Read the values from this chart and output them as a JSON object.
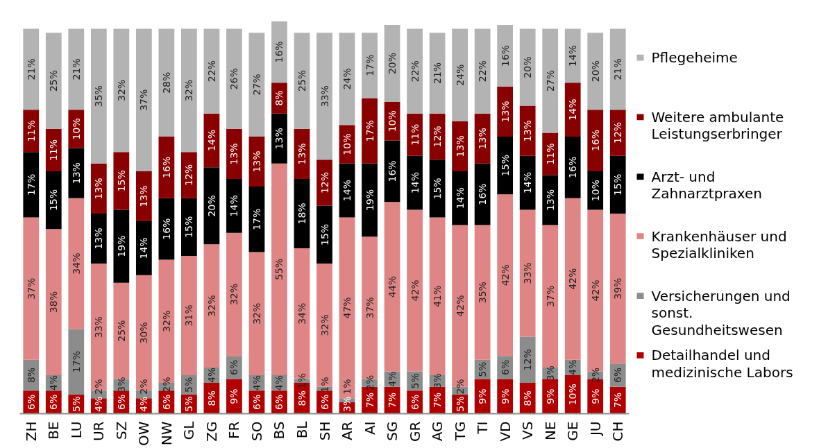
{
  "chart_data": {
    "type": "bar",
    "stacked": true,
    "tick_labels": "x",
    "grid": false,
    "legend": "right",
    "categories": [
      "ZH",
      "BE",
      "LU",
      "UR",
      "SZ",
      "OW",
      "NW",
      "GL",
      "ZG",
      "FR",
      "SO",
      "BS",
      "BL",
      "SH",
      "AR",
      "AI",
      "SG",
      "GR",
      "AG",
      "TG",
      "TI",
      "VD",
      "VS",
      "NE",
      "GE",
      "JU",
      "CH"
    ],
    "series": [
      {
        "name": "Detailhandel und medizinische Labors",
        "color": "#b00000",
        "values": [
          6,
          6,
          5,
          4,
          6,
          4,
          6,
          5,
          8,
          9,
          6,
          6,
          8,
          6,
          3,
          7,
          7,
          6,
          7,
          5,
          9,
          9,
          8,
          9,
          10,
          9,
          7
        ],
        "value_labels": [
          "6%",
          "6%",
          "5%",
          "4%",
          "6%",
          "4%",
          "6%",
          "5%",
          "8%",
          "9%",
          "6%",
          "6%",
          "8%",
          "6%",
          "3%",
          "7%",
          "7%",
          "6%",
          "7%",
          "5%",
          "9%",
          "9%",
          "8%",
          "9%",
          "10%",
          "9%",
          "7%"
        ]
      },
      {
        "name": "Versicherungen und sonst. Gesundheitswesen",
        "color": "#8c8c8c",
        "values": [
          8,
          4,
          17,
          2,
          3,
          2,
          2,
          5,
          4,
          6,
          4,
          4,
          1,
          1,
          1,
          2,
          4,
          5,
          3,
          2,
          5,
          6,
          12,
          3,
          4,
          2,
          6
        ],
        "value_labels": [
          "8%",
          "4%",
          "17%",
          "2%",
          "3%",
          "2%",
          "2%",
          "5%",
          "4%",
          "6%",
          "4%",
          "4%",
          "1%",
          "1%",
          "1%",
          "2%",
          "4%",
          "5%",
          "3%",
          "2%",
          "5%",
          "6%",
          "12%",
          "3%",
          "4%",
          "2%",
          "6%"
        ]
      },
      {
        "name": "Krankenhäuser und Spezialkliniken",
        "color": "#e08585",
        "values": [
          37,
          38,
          34,
          33,
          25,
          30,
          32,
          31,
          32,
          32,
          32,
          55,
          34,
          32,
          47,
          37,
          44,
          42,
          41,
          42,
          35,
          42,
          33,
          37,
          42,
          42,
          39
        ],
        "value_labels": [
          "37%",
          "38%",
          "34%",
          "33%",
          "25%",
          "30%",
          "32%",
          "31%",
          "32%",
          "32%",
          "32%",
          "55%",
          "34%",
          "32%",
          "47%",
          "37%",
          "44%",
          "42%",
          "41%",
          "42%",
          "35%",
          "42%",
          "33%",
          "37%",
          "42%",
          "42%",
          "39%"
        ]
      },
      {
        "name": "Arzt- und Zahnarztpraxen",
        "color": "#000000",
        "values": [
          17,
          15,
          13,
          13,
          19,
          14,
          16,
          15,
          20,
          14,
          17,
          13,
          18,
          15,
          14,
          19,
          16,
          14,
          15,
          14,
          16,
          15,
          14,
          13,
          16,
          10,
          15
        ],
        "value_labels": [
          "17%",
          "15%",
          "13%",
          "13%",
          "19%",
          "14%",
          "16%",
          "15%",
          "20%",
          "14%",
          "17%",
          "13%",
          "18%",
          "15%",
          "14%",
          "19%",
          "16%",
          "14%",
          "15%",
          "14%",
          "16%",
          "15%",
          "14%",
          "13%",
          "16%",
          "10%",
          "15%"
        ]
      },
      {
        "name": "Weitere ambulante Leistungserbringer",
        "color": "#880000",
        "values": [
          11,
          11,
          10,
          13,
          15,
          13,
          16,
          12,
          14,
          13,
          13,
          8,
          13,
          12,
          10,
          17,
          10,
          11,
          12,
          13,
          13,
          13,
          13,
          11,
          14,
          16,
          12
        ],
        "value_labels": [
          "11%",
          "11%",
          "10%",
          "13%",
          "15%",
          "13%",
          "16%",
          "12%",
          "14%",
          "13%",
          "13%",
          "8%",
          "13%",
          "12%",
          "10%",
          "17%",
          "10%",
          "11%",
          "12%",
          "13%",
          "13%",
          "13%",
          "13%",
          "11%",
          "14%",
          "16%",
          "12%"
        ]
      },
      {
        "name": "Pflegeheime",
        "color": "#b3b3b3",
        "values": [
          21,
          25,
          21,
          35,
          32,
          37,
          28,
          32,
          22,
          26,
          27,
          16,
          25,
          33,
          24,
          17,
          20,
          22,
          21,
          24,
          22,
          16,
          20,
          27,
          14,
          20,
          21
        ],
        "value_labels": [
          "21%",
          "25%",
          "21%",
          "35%",
          "32%",
          "37%",
          "28%",
          "32%",
          "22%",
          "26%",
          "27%",
          "16%",
          "25%",
          "33%",
          "24%",
          "17%",
          "20%",
          "22%",
          "21%",
          "24%",
          "22%",
          "16%",
          "20%",
          "27%",
          "14%",
          "20%",
          "21%"
        ]
      }
    ]
  }
}
